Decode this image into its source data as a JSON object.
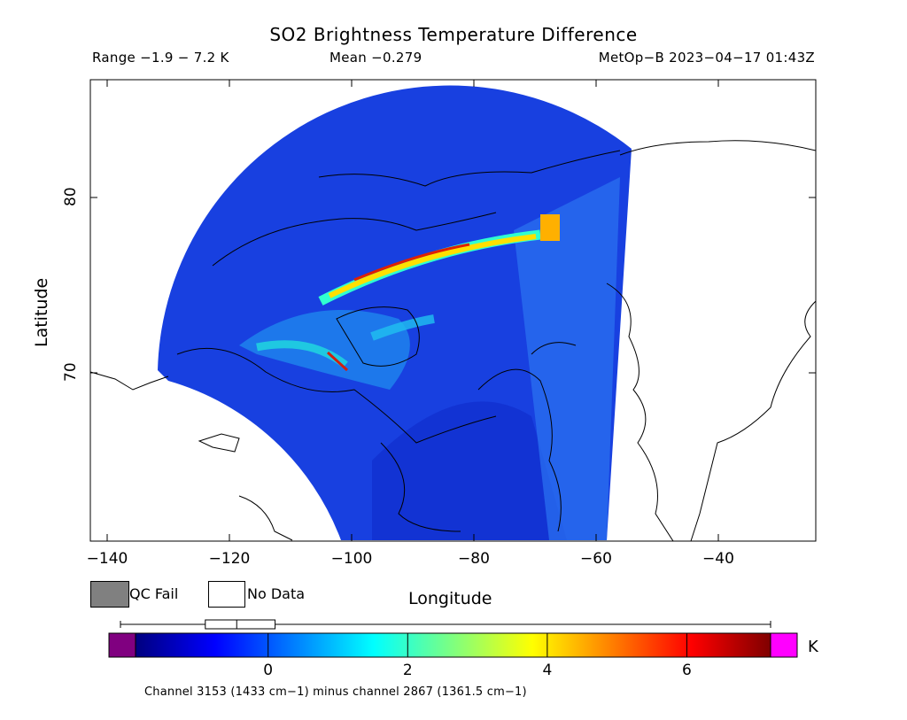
{
  "title": "SO2 Brightness Temperature Difference",
  "stats": {
    "range": "Range −1.9 − 7.2 K",
    "mean": "Mean −0.279",
    "satellite": "MetOp−B 2023−04−17 01:43Z"
  },
  "axes": {
    "x_label": "Longitude",
    "y_label": "Latitude",
    "x_ticks": [
      "−140",
      "−120",
      "−100",
      "−80",
      "−60",
      "−40"
    ],
    "y_ticks": [
      "80",
      "70"
    ],
    "lon_range": [
      -143,
      -26
    ],
    "lat_range": [
      60,
      87
    ]
  },
  "legend": {
    "qc_fail": "QC Fail",
    "no_data": "No Data",
    "qc_fail_color": "#808080",
    "no_data_color": "#ffffff"
  },
  "colorbar": {
    "unit": "K",
    "ticks": [
      "0",
      "2",
      "4",
      "6"
    ],
    "min": -1.9,
    "max": 7.2,
    "under_color": "#800080",
    "over_color": "#ff00ff",
    "stops": [
      "#00007f",
      "#0000ff",
      "#007fff",
      "#00ffff",
      "#7fff7f",
      "#ffff00",
      "#ff7f00",
      "#ff0000",
      "#7f0000"
    ],
    "boxplot": {
      "min": -1.9,
      "q1": -0.9,
      "median": -0.45,
      "q3": 0.1,
      "max": 7.2
    }
  },
  "footnote": "Channel 3153 (1433 cm−1) minus channel 2867 (1361.5 cm−1)"
}
